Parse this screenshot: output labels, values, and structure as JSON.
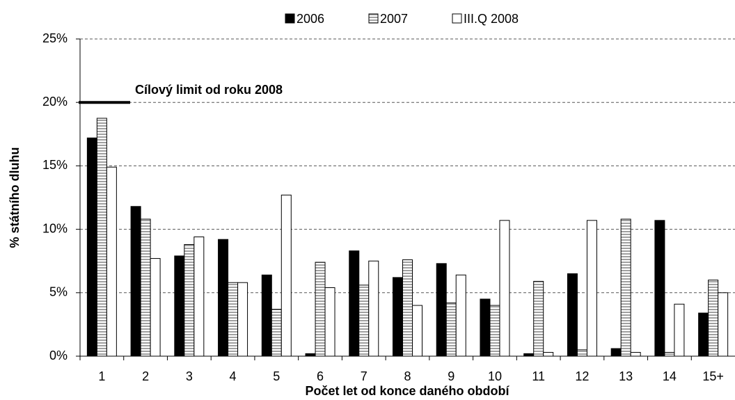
{
  "chart_data": {
    "type": "bar",
    "x_label": "Počet let od konce daného období",
    "y_label": "% státního dluhu",
    "categories": [
      "1",
      "2",
      "3",
      "4",
      "5",
      "6",
      "7",
      "8",
      "9",
      "10",
      "11",
      "12",
      "13",
      "14",
      "15+"
    ],
    "series": [
      {
        "name": "2006",
        "color": "#000000",
        "values": [
          17.2,
          11.8,
          7.9,
          9.2,
          6.4,
          0.2,
          8.3,
          6.2,
          7.3,
          4.5,
          0.2,
          6.5,
          0.6,
          10.7,
          3.4
        ]
      },
      {
        "name": "2007",
        "color": "#a0a0a0",
        "values": [
          18.75,
          10.8,
          8.8,
          5.8,
          3.7,
          7.4,
          5.6,
          7.6,
          4.2,
          4.0,
          5.9,
          0.5,
          10.8,
          0.3,
          6.0
        ]
      },
      {
        "name": "III.Q 2008",
        "color": "#ffffff",
        "values": [
          14.9,
          7.7,
          9.4,
          5.8,
          12.7,
          5.4,
          7.5,
          4.0,
          6.4,
          10.7,
          0.3,
          10.7,
          0.3,
          4.1,
          5.0
        ]
      }
    ],
    "annotation": {
      "text": "Cílový limit od roku 2008",
      "value": 20
    },
    "ylim": [
      0,
      25
    ],
    "yticks": [
      {
        "value": 0,
        "label": "0%"
      },
      {
        "value": 5,
        "label": "5%"
      },
      {
        "value": 10,
        "label": "10%"
      },
      {
        "value": 15,
        "label": "15%"
      },
      {
        "value": 20,
        "label": "20%"
      },
      {
        "value": 25,
        "label": "25%"
      }
    ],
    "grid": true,
    "legend": "top"
  }
}
